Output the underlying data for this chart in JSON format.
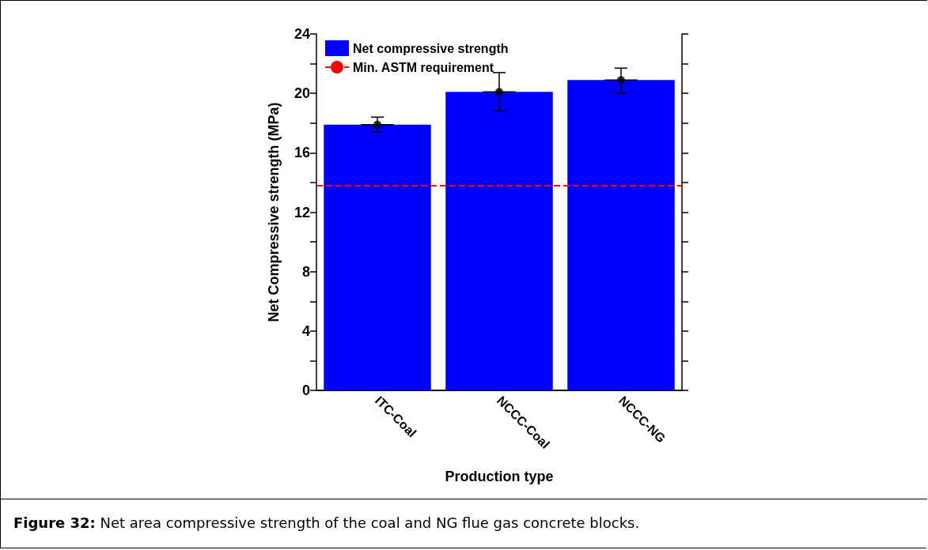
{
  "chart_data": {
    "type": "bar",
    "xlabel": "Production type",
    "ylabel": "Net Compressive strength (MPa)",
    "categories": [
      "ITC-Coal",
      "NCCC-Coal",
      "NCCC-NG"
    ],
    "series": [
      {
        "name": "Net compressive strength",
        "color": "#0000ff",
        "values": [
          17.9,
          20.1,
          20.9
        ],
        "errors": [
          [
            17.4,
            18.4
          ],
          [
            18.8,
            21.4
          ],
          [
            20.0,
            21.7
          ]
        ]
      },
      {
        "type": "scatter",
        "color": "#000000",
        "x": [
          "ITC-Coal",
          "NCCC-Coal",
          "NCCC-NG"
        ],
        "values": [
          17.9,
          20.1,
          20.9
        ]
      }
    ],
    "marker": "circle",
    "ylim": [
      0,
      24
    ],
    "yticks": [
      0,
      {
        "value": 2,
        "label": null
      },
      4,
      {
        "value": 6,
        "label": null
      },
      8,
      {
        "value": 10,
        "label": null
      },
      12,
      {
        "value": 14,
        "label": null
      },
      16,
      {
        "value": 18,
        "label": null
      },
      20,
      {
        "value": 22,
        "label": null
      },
      24
    ],
    "ref_lines": [
      {
        "axis": "y",
        "value": 13.8,
        "label": "Min. ASTM requirement",
        "color": "#ff0000",
        "line_style": "dashed"
      }
    ],
    "legend": "top left",
    "grid": false,
    "annotations": [
      "Figure 32:  Net area compressive strength of the coal and NG flue gas concrete blocks."
    ]
  }
}
